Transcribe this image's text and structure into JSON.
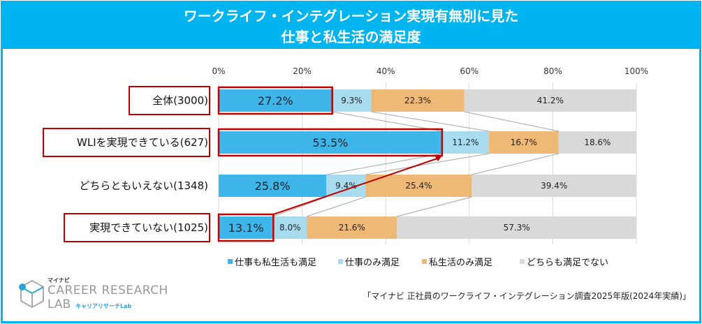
{
  "title_lines": [
    "ワークライフ・インテグレーション実現有無別に見た",
    "仕事と私生活の満足度"
  ],
  "chart_data": {
    "type": "bar",
    "orientation": "horizontal",
    "stacked": true,
    "percent_stacked": true,
    "title": "ワークライフ・インテグレーション実現有無別に見た 仕事と私生活の満足度",
    "categories": [
      "全体(3000)",
      "WLIを実現できている(627)",
      "どちらともいえない(1348)",
      "実現できていない(1025)"
    ],
    "series": [
      {
        "name": "仕事も私生活も満足",
        "color": "#3eb6ea",
        "values": [
          27.2,
          53.5,
          25.8,
          13.1
        ],
        "labels": [
          "27.2%",
          "53.5%",
          "25.8%",
          "13.1%"
        ]
      },
      {
        "name": "仕事のみ満足",
        "color": "#a9dbef",
        "values": [
          9.3,
          11.2,
          9.4,
          8.0
        ],
        "labels": [
          "9.3%",
          "11.2%",
          "9.4%",
          "8.0%"
        ]
      },
      {
        "name": "私生活のみ満足",
        "color": "#eeb877",
        "values": [
          22.3,
          16.7,
          25.4,
          21.6
        ],
        "labels": [
          "22.3%",
          "16.7%",
          "25.4%",
          "21.6%"
        ]
      },
      {
        "name": "どちらも満足でない",
        "color": "#d9d9d9",
        "values": [
          41.2,
          18.6,
          39.4,
          57.3
        ],
        "labels": [
          "41.2%",
          "18.6%",
          "39.4%",
          "57.3%"
        ]
      }
    ],
    "xlim": [
      0,
      100
    ],
    "xticks": [
      "0%",
      "20%",
      "40%",
      "60%",
      "80%",
      "100%"
    ],
    "grid": true,
    "legend": "bottom",
    "highlighted_categories": [
      0,
      1,
      3
    ],
    "highlight_color": "#c00000"
  },
  "logo": {
    "brand": "マイナビ",
    "name": "CAREER RESEARCH",
    "lab": "LAB",
    "kana": "キャリアリサーチLab"
  },
  "source": "「マイナビ 正社員のワークライフ・インテグレーション調査2025年版(2024年実績)」"
}
